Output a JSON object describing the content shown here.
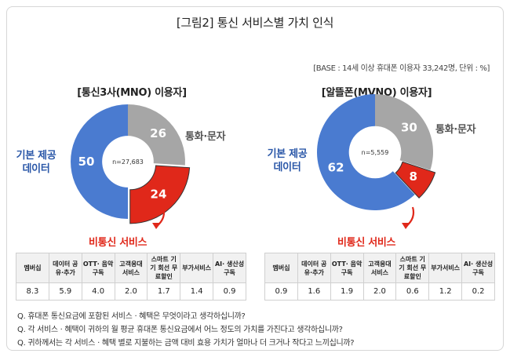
{
  "title": "[그림2] 통신 서비스별 가치 인식",
  "base_note": "[BASE : 14세 이상 휴대폰 이용자 33,242명, 단위 : %]",
  "colors": {
    "blue": "#4a7bd0",
    "gray": "#a6a6a6",
    "red": "#e0281a",
    "dark_blue": "#2a57a8"
  },
  "chart_data": [
    {
      "type": "pie",
      "title": "[통신3사(MNO) 이용자]",
      "n_label": "n=27,683",
      "slices": [
        {
          "name": "통화·문자",
          "value": 26
        },
        {
          "name": "비통신 서비스",
          "value": 24
        },
        {
          "name": "기본 제공 데이터",
          "value": 50
        }
      ],
      "external_labels": {
        "data": [
          "기본 제공",
          "데이터"
        ],
        "call": "통화·문자",
        "non_telecom": "비통신 서비스"
      },
      "table": {
        "headers": [
          "멤버십",
          "데이터 공유·추가",
          "OTT· 음악 구독",
          "고객응대 서비스",
          "스마트 기기 회선 무료할인",
          "부가서비스",
          "AI· 생산성 구독"
        ],
        "values": [
          "8.3",
          "5.9",
          "4.0",
          "2.0",
          "1.7",
          "1.4",
          "0.9"
        ]
      }
    },
    {
      "type": "pie",
      "title": "[알뜰폰(MVNO) 이용자]",
      "n_label": "n=5,559",
      "slices": [
        {
          "name": "통화·문자",
          "value": 30
        },
        {
          "name": "비통신 서비스",
          "value": 8
        },
        {
          "name": "기본 제공 데이터",
          "value": 62
        }
      ],
      "external_labels": {
        "data": [
          "기본 제공",
          "데이터"
        ],
        "call": "통화·문자",
        "non_telecom": "비통신 서비스"
      },
      "table": {
        "headers": [
          "멤버십",
          "데이터 공유·추가",
          "OTT· 음악 구독",
          "고객응대 서비스",
          "스마트 기기 회선 무료할인",
          "부가서비스",
          "AI· 생산성 구독"
        ],
        "values": [
          "0.9",
          "1.6",
          "1.9",
          "2.0",
          "0.6",
          "1.2",
          "0.2"
        ]
      }
    }
  ],
  "questions": [
    "Q. 휴대폰 통신요금에 포함된 서비스 · 혜택은 무엇이라고 생각하십니까?",
    "Q. 각 서비스 · 혜택이 귀하의 월 평균 휴대폰 통신요금에서 어느 정도의 가치를 가진다고 생각하십니까?",
    "Q. 귀하께서는 각 서비스 · 혜택 별로 지불하는 금액 대비 효용 가치가 얼마나 더 크거나 작다고 느끼십니까?"
  ]
}
